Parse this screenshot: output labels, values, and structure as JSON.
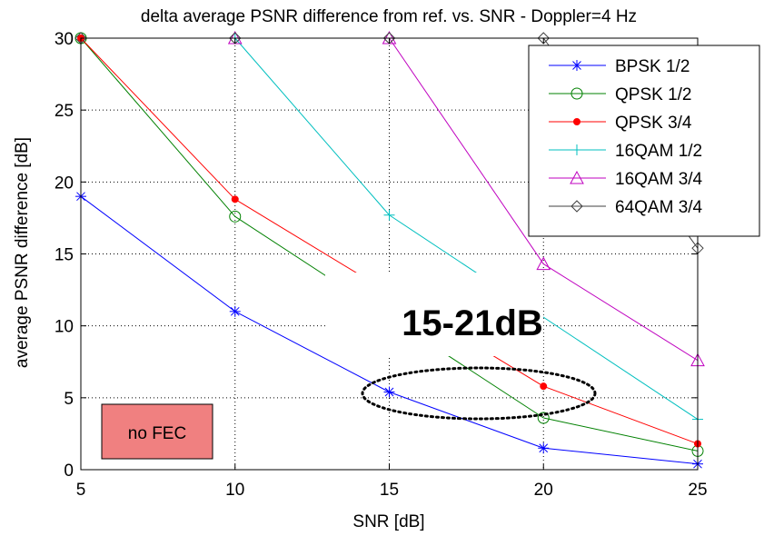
{
  "chart_data": {
    "type": "line",
    "title": "delta average PSNR difference from ref. vs. SNR  - Doppler=4 Hz",
    "xlabel": "SNR [dB]",
    "ylabel": "average PSNR difference [dB]",
    "xlim": [
      5,
      25
    ],
    "ylim": [
      0,
      30
    ],
    "xticks": [
      5,
      10,
      15,
      20,
      25
    ],
    "yticks": [
      0,
      5,
      10,
      15,
      20,
      25,
      30
    ],
    "grid": true,
    "legend_position": "top-right",
    "x": [
      5,
      10,
      15,
      20,
      25
    ],
    "series": [
      {
        "name": "BPSK 1/2",
        "color": "#0000ff",
        "marker": "star",
        "values": [
          19.0,
          11.0,
          5.4,
          1.5,
          0.4
        ]
      },
      {
        "name": "QPSK 1/2",
        "color": "#008000",
        "marker": "circle",
        "values": [
          30.0,
          17.6,
          null,
          3.6,
          1.3
        ]
      },
      {
        "name": "QPSK 3/4",
        "color": "#ff0000",
        "marker": "dot",
        "values": [
          30.0,
          18.8,
          null,
          5.8,
          1.8
        ]
      },
      {
        "name": "16QAM 1/2",
        "color": "#00bfbf",
        "marker": "plus",
        "values": [
          null,
          30.0,
          17.7,
          null,
          3.5
        ]
      },
      {
        "name": "16QAM 3/4",
        "color": "#bf00bf",
        "marker": "triangle",
        "values": [
          null,
          30.0,
          30.0,
          14.3,
          7.6
        ]
      },
      {
        "name": "64QAM 3/4",
        "color": "#404040",
        "marker": "diamond",
        "values": [
          30.0,
          30.0,
          30.0,
          30.0,
          15.4
        ]
      }
    ],
    "annotations": {
      "big_label": "15-21dB",
      "box_label": "no FEC",
      "box_color": "#f08080"
    }
  }
}
